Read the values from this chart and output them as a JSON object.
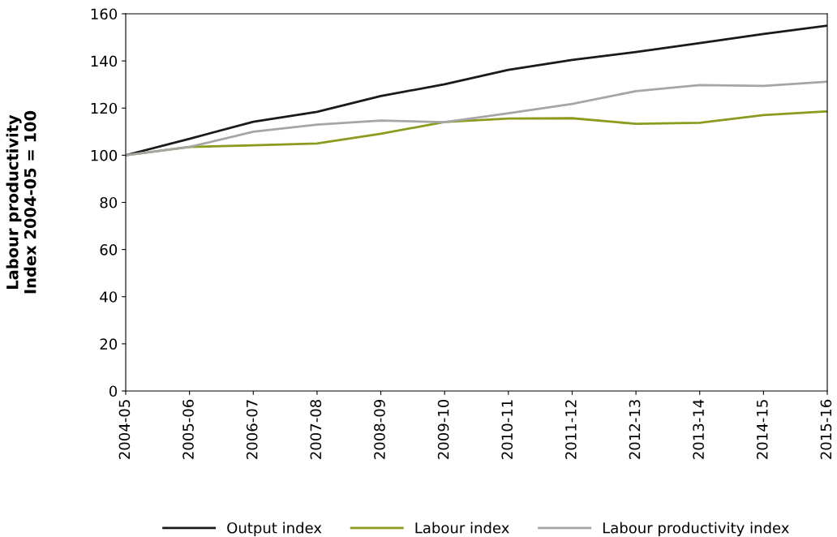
{
  "chart_data": {
    "type": "line",
    "ylabel": "Labour productivity\nIndex 2004-05 = 100",
    "categories": [
      "2004-05",
      "2005-06",
      "2006-07",
      "2007-08",
      "2008-09",
      "2009-10",
      "2010-11",
      "2011-12",
      "2012-13",
      "2013-14",
      "2014-15",
      "2015-16"
    ],
    "series": [
      {
        "name": "Output index",
        "color": "#1a1a1a",
        "values": [
          100,
          107,
          114.2,
          118.4,
          125.1,
          130.1,
          136.2,
          140.4,
          143.8,
          147.6,
          151.4,
          155
        ]
      },
      {
        "name": "Labour index",
        "color": "#8c9a1e",
        "values": [
          100,
          103.5,
          104.2,
          105,
          109.1,
          114.1,
          115.6,
          115.7,
          113.3,
          113.8,
          117,
          118.6
        ]
      },
      {
        "name": "Labour productivity index",
        "color": "#a6a6a6",
        "values": [
          100,
          103.5,
          110,
          113,
          114.7,
          114,
          117.8,
          121.8,
          127.2,
          129.8,
          129.4,
          131.2
        ]
      }
    ],
    "ylim": [
      0,
      160
    ],
    "yticks": [
      0,
      20,
      40,
      60,
      80,
      100,
      120,
      140,
      160
    ],
    "grid": false,
    "legend": "bottom",
    "marker": "none",
    "line_style": "solid"
  }
}
